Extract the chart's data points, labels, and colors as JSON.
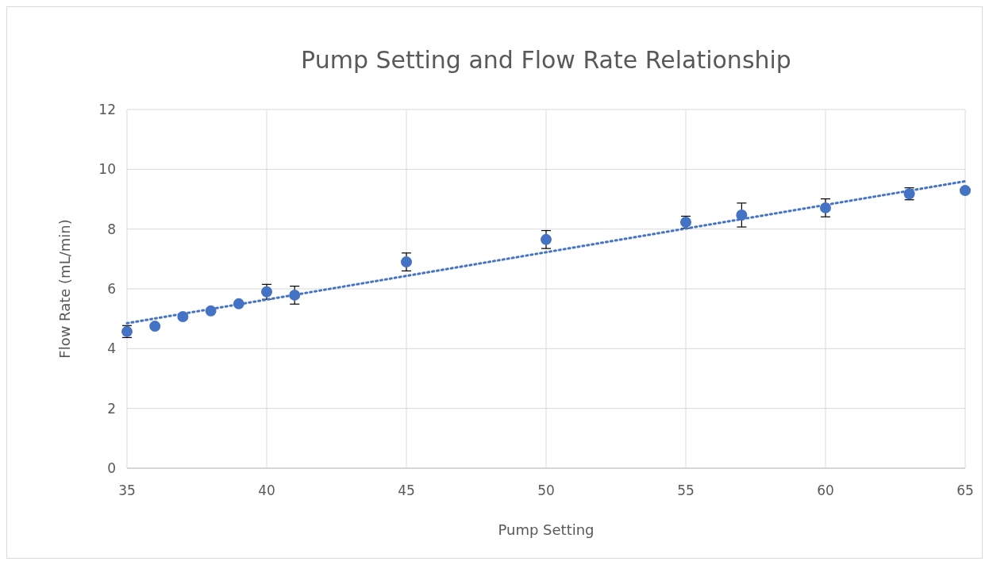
{
  "chart_data": {
    "type": "scatter",
    "title": "Pump Setting and Flow Rate Relationship",
    "xlabel": "Pump Setting",
    "ylabel": "Flow Rate (mL/min)",
    "xlim": [
      35,
      65
    ],
    "xticks": [
      35,
      40,
      45,
      50,
      55,
      60,
      65
    ],
    "ylim": [
      0,
      12
    ],
    "yticks": [
      0,
      2,
      4,
      6,
      8,
      10,
      12
    ],
    "grid": true,
    "marker": "circle",
    "series": [
      {
        "color": "#4472c4",
        "x": [
          35,
          36,
          37,
          38,
          39,
          40,
          41,
          45,
          50,
          55,
          57,
          60,
          63,
          65
        ],
        "values": [
          4.57,
          4.75,
          5.07,
          5.26,
          5.5,
          5.9,
          5.79,
          6.9,
          7.65,
          8.23,
          8.47,
          8.71,
          9.18,
          9.29
        ],
        "errors": [
          0.2,
          null,
          null,
          null,
          null,
          0.25,
          0.3,
          0.3,
          0.3,
          0.2,
          0.4,
          0.3,
          0.2,
          null
        ]
      },
      {
        "type": "line",
        "color": "#4472c4",
        "line_style": "dotted",
        "marker": "none",
        "x": [
          35,
          65
        ],
        "values": [
          4.85,
          9.6
        ]
      }
    ]
  }
}
